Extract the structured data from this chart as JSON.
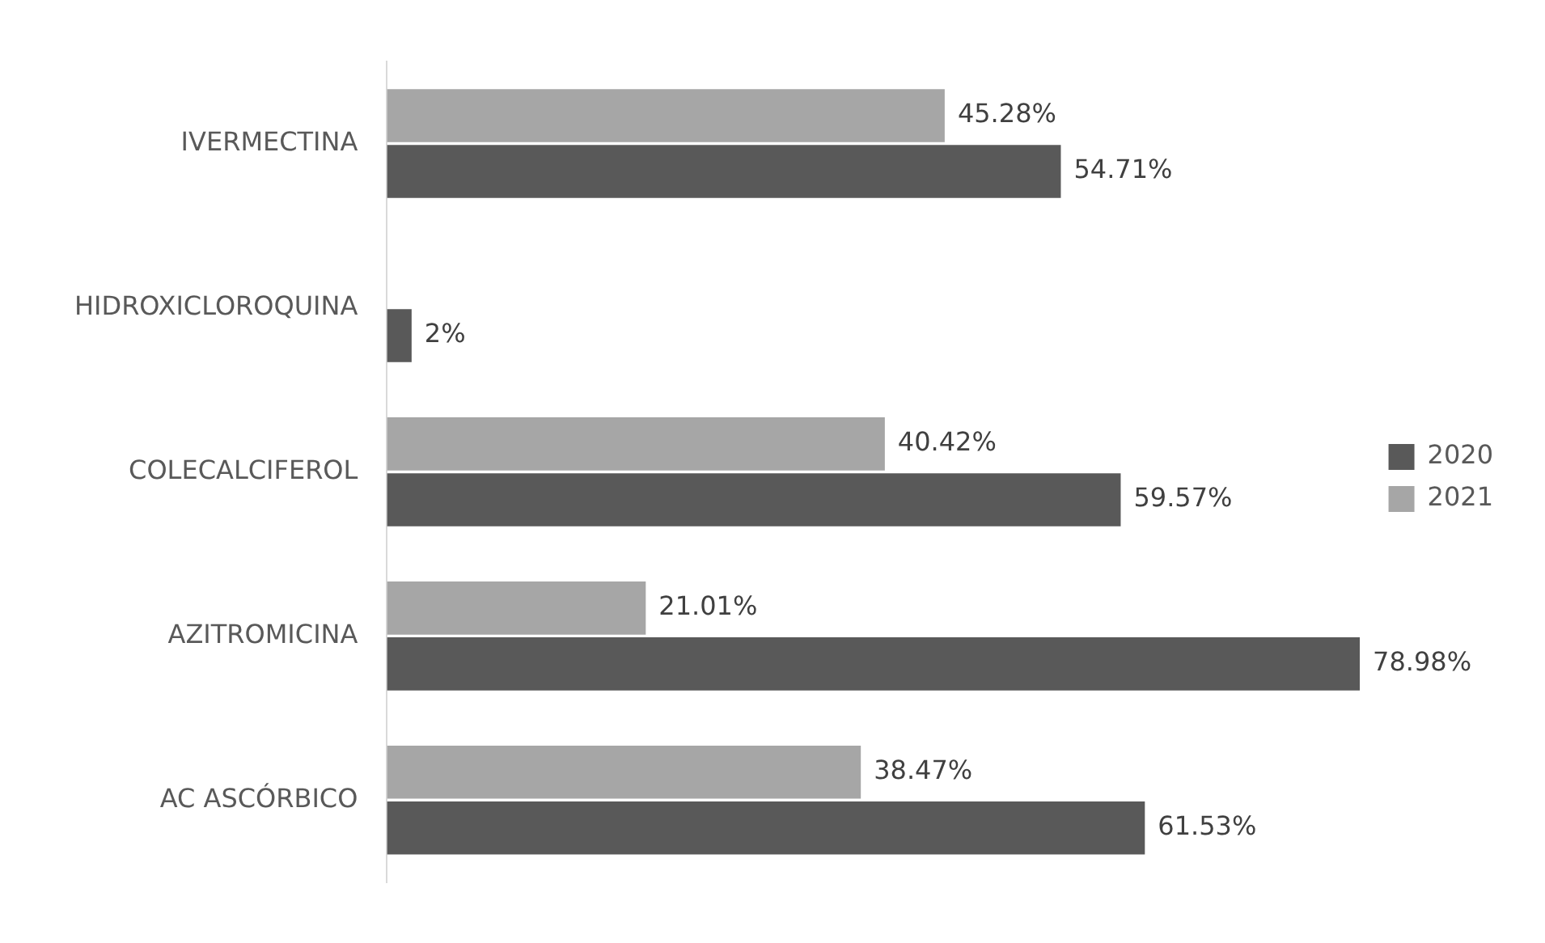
{
  "chart_data": {
    "type": "bar",
    "orientation": "horizontal",
    "categories": [
      "IVERMECTINA",
      "HIDROXICLOROQUINA",
      "COLECALCIFEROL",
      "AZITROMICINA",
      "AC ASCÓRBICO"
    ],
    "series": [
      {
        "name": "2020",
        "color": "#595959",
        "values": [
          54.71,
          2,
          59.57,
          78.98,
          61.53
        ],
        "value_labels": [
          "54.71%",
          "2%",
          "59.57%",
          "78.98%",
          "61.53%"
        ]
      },
      {
        "name": "2021",
        "color": "#a6a6a6",
        "values": [
          45.28,
          null,
          40.42,
          21.01,
          38.47
        ],
        "value_labels": [
          "45.28%",
          null,
          "40.42%",
          "21.01%",
          "38.47%"
        ]
      }
    ],
    "legend": "right"
  }
}
